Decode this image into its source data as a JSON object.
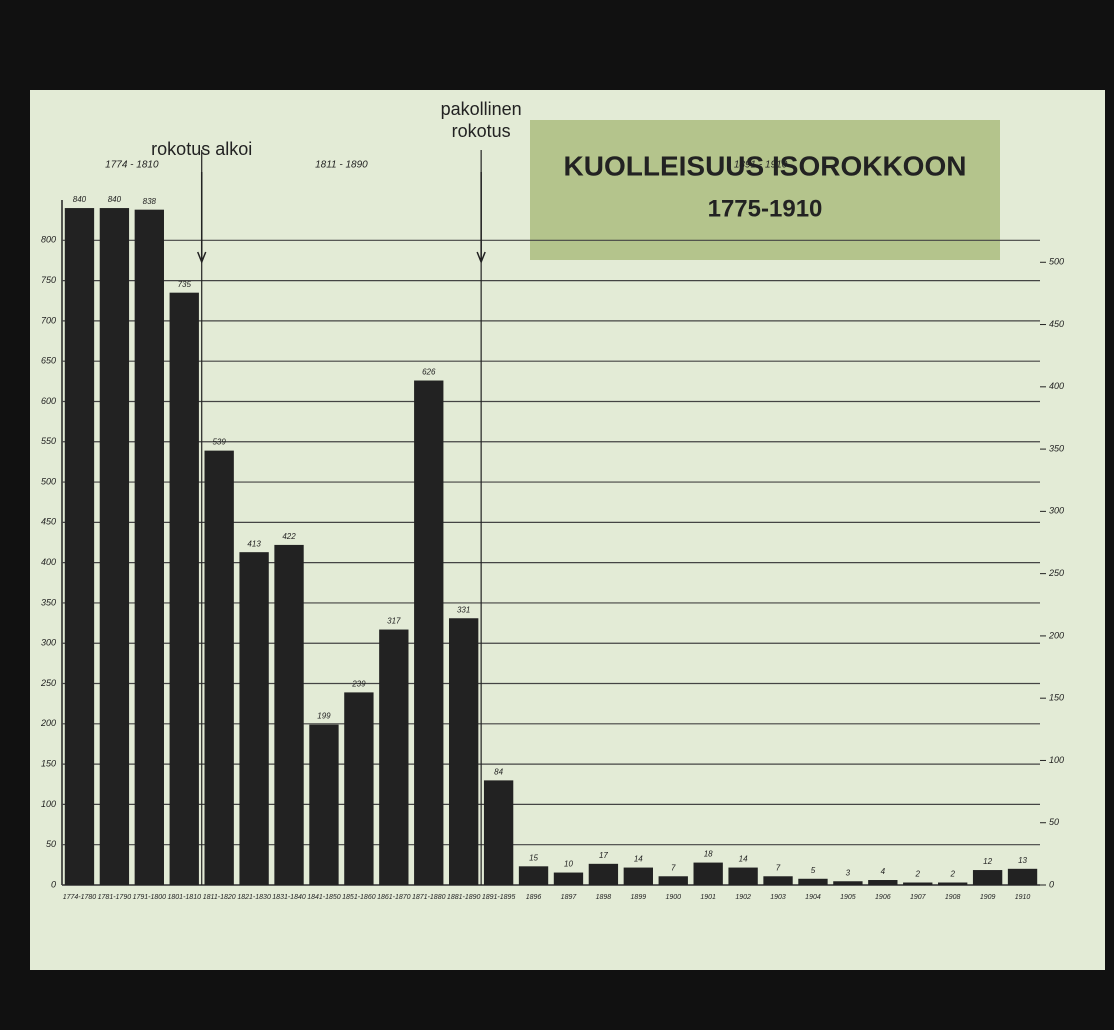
{
  "chart_data": {
    "type": "bar",
    "title": "KUOLLEISUUS ISOROKKOON",
    "subtitle": "1775-1910",
    "annotations": [
      [
        "rokotus alkoi"
      ],
      [
        "pakollinen",
        "rokotus"
      ]
    ],
    "periods": [
      "1774 - 1810",
      "1811 - 1890",
      "1891 - 1910"
    ],
    "categories": [
      "1774-1780",
      "1781-1790",
      "1791-1800",
      "1801-1810",
      "1811-1820",
      "1821-1830",
      "1831-1840",
      "1841-1850",
      "1851-1860",
      "1861-1870",
      "1871-1880",
      "1881-1890",
      "1891-1895",
      "1896",
      "1897",
      "1898",
      "1899",
      "1900",
      "1901",
      "1902",
      "1903",
      "1904",
      "1905",
      "1906",
      "1907",
      "1908",
      "1909",
      "1910"
    ],
    "series": [
      {
        "color": "#222222",
        "values": [
          840,
          840,
          838,
          735,
          539,
          413,
          422,
          199,
          239,
          317,
          626,
          331,
          null,
          null,
          null,
          null,
          null,
          null,
          null,
          null,
          null,
          null,
          null,
          null,
          null,
          null,
          null,
          null
        ]
      },
      {
        "color": "#222222",
        "axis": "y2",
        "values": [
          null,
          null,
          null,
          null,
          null,
          null,
          null,
          null,
          null,
          null,
          null,
          null,
          84,
          15,
          10,
          17,
          14,
          7,
          18,
          14,
          7,
          5,
          3,
          4,
          2,
          2,
          12,
          13
        ]
      }
    ],
    "ylim": [
      0,
      850
    ],
    "yticks": [
      0,
      50,
      100,
      150,
      200,
      250,
      300,
      350,
      400,
      450,
      500,
      550,
      600,
      650,
      700,
      750,
      800
    ],
    "y2lim": [
      0,
      550
    ],
    "y2ticks": [
      0,
      50,
      100,
      150,
      200,
      250,
      300,
      350,
      400,
      450,
      500
    ],
    "grid": true
  }
}
